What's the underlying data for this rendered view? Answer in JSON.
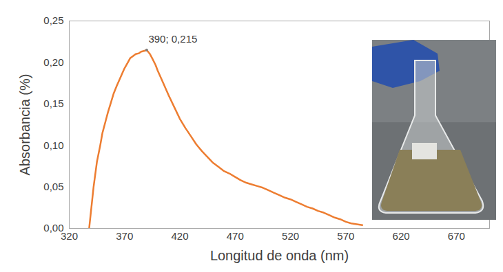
{
  "chart_data": {
    "type": "line",
    "xlabel": "Longitud de onda (nm)",
    "ylabel": "Absorbancia (%)",
    "x": [
      338,
      342,
      345,
      348,
      350,
      353,
      355,
      358,
      360,
      363,
      365,
      368,
      370,
      373,
      375,
      378,
      380,
      383,
      385,
      388,
      390,
      393,
      395,
      398,
      400,
      403,
      405,
      408,
      410,
      415,
      420,
      425,
      430,
      435,
      440,
      445,
      450,
      455,
      460,
      465,
      470,
      475,
      480,
      485,
      490,
      495,
      500,
      505,
      510,
      515,
      520,
      525,
      530,
      535,
      540,
      545,
      550,
      555,
      560,
      565,
      570,
      575,
      580,
      585
    ],
    "series": [
      {
        "color": "#ED7D31",
        "values": [
          0.0,
          0.05,
          0.08,
          0.1,
          0.115,
          0.13,
          0.14,
          0.153,
          0.162,
          0.172,
          0.178,
          0.187,
          0.193,
          0.2,
          0.205,
          0.208,
          0.21,
          0.211,
          0.213,
          0.214,
          0.215,
          0.21,
          0.205,
          0.197,
          0.19,
          0.181,
          0.175,
          0.166,
          0.16,
          0.146,
          0.132,
          0.121,
          0.111,
          0.101,
          0.093,
          0.086,
          0.079,
          0.074,
          0.069,
          0.066,
          0.062,
          0.058,
          0.055,
          0.053,
          0.051,
          0.049,
          0.046,
          0.043,
          0.04,
          0.037,
          0.035,
          0.032,
          0.029,
          0.026,
          0.024,
          0.021,
          0.019,
          0.016,
          0.013,
          0.011,
          0.008,
          0.006,
          0.005,
          0.004
        ]
      }
    ],
    "xlim": [
      320,
      700
    ],
    "xticks": [
      320,
      370,
      420,
      470,
      520,
      570,
      620,
      670
    ],
    "ylim": [
      0,
      0.25
    ],
    "yticks": [
      {
        "value": 0,
        "label": "0,00"
      },
      {
        "value": 0.05,
        "label": "0,05"
      },
      {
        "value": 0.1,
        "label": "0,10"
      },
      {
        "value": 0.15,
        "label": "0,15"
      },
      {
        "value": 0.2,
        "label": "0,20"
      },
      {
        "value": 0.25,
        "label": "0,25"
      }
    ],
    "grid": false,
    "annotations": [
      {
        "text": "390; 0,215",
        "x": 390,
        "y": 0.215
      }
    ]
  }
}
